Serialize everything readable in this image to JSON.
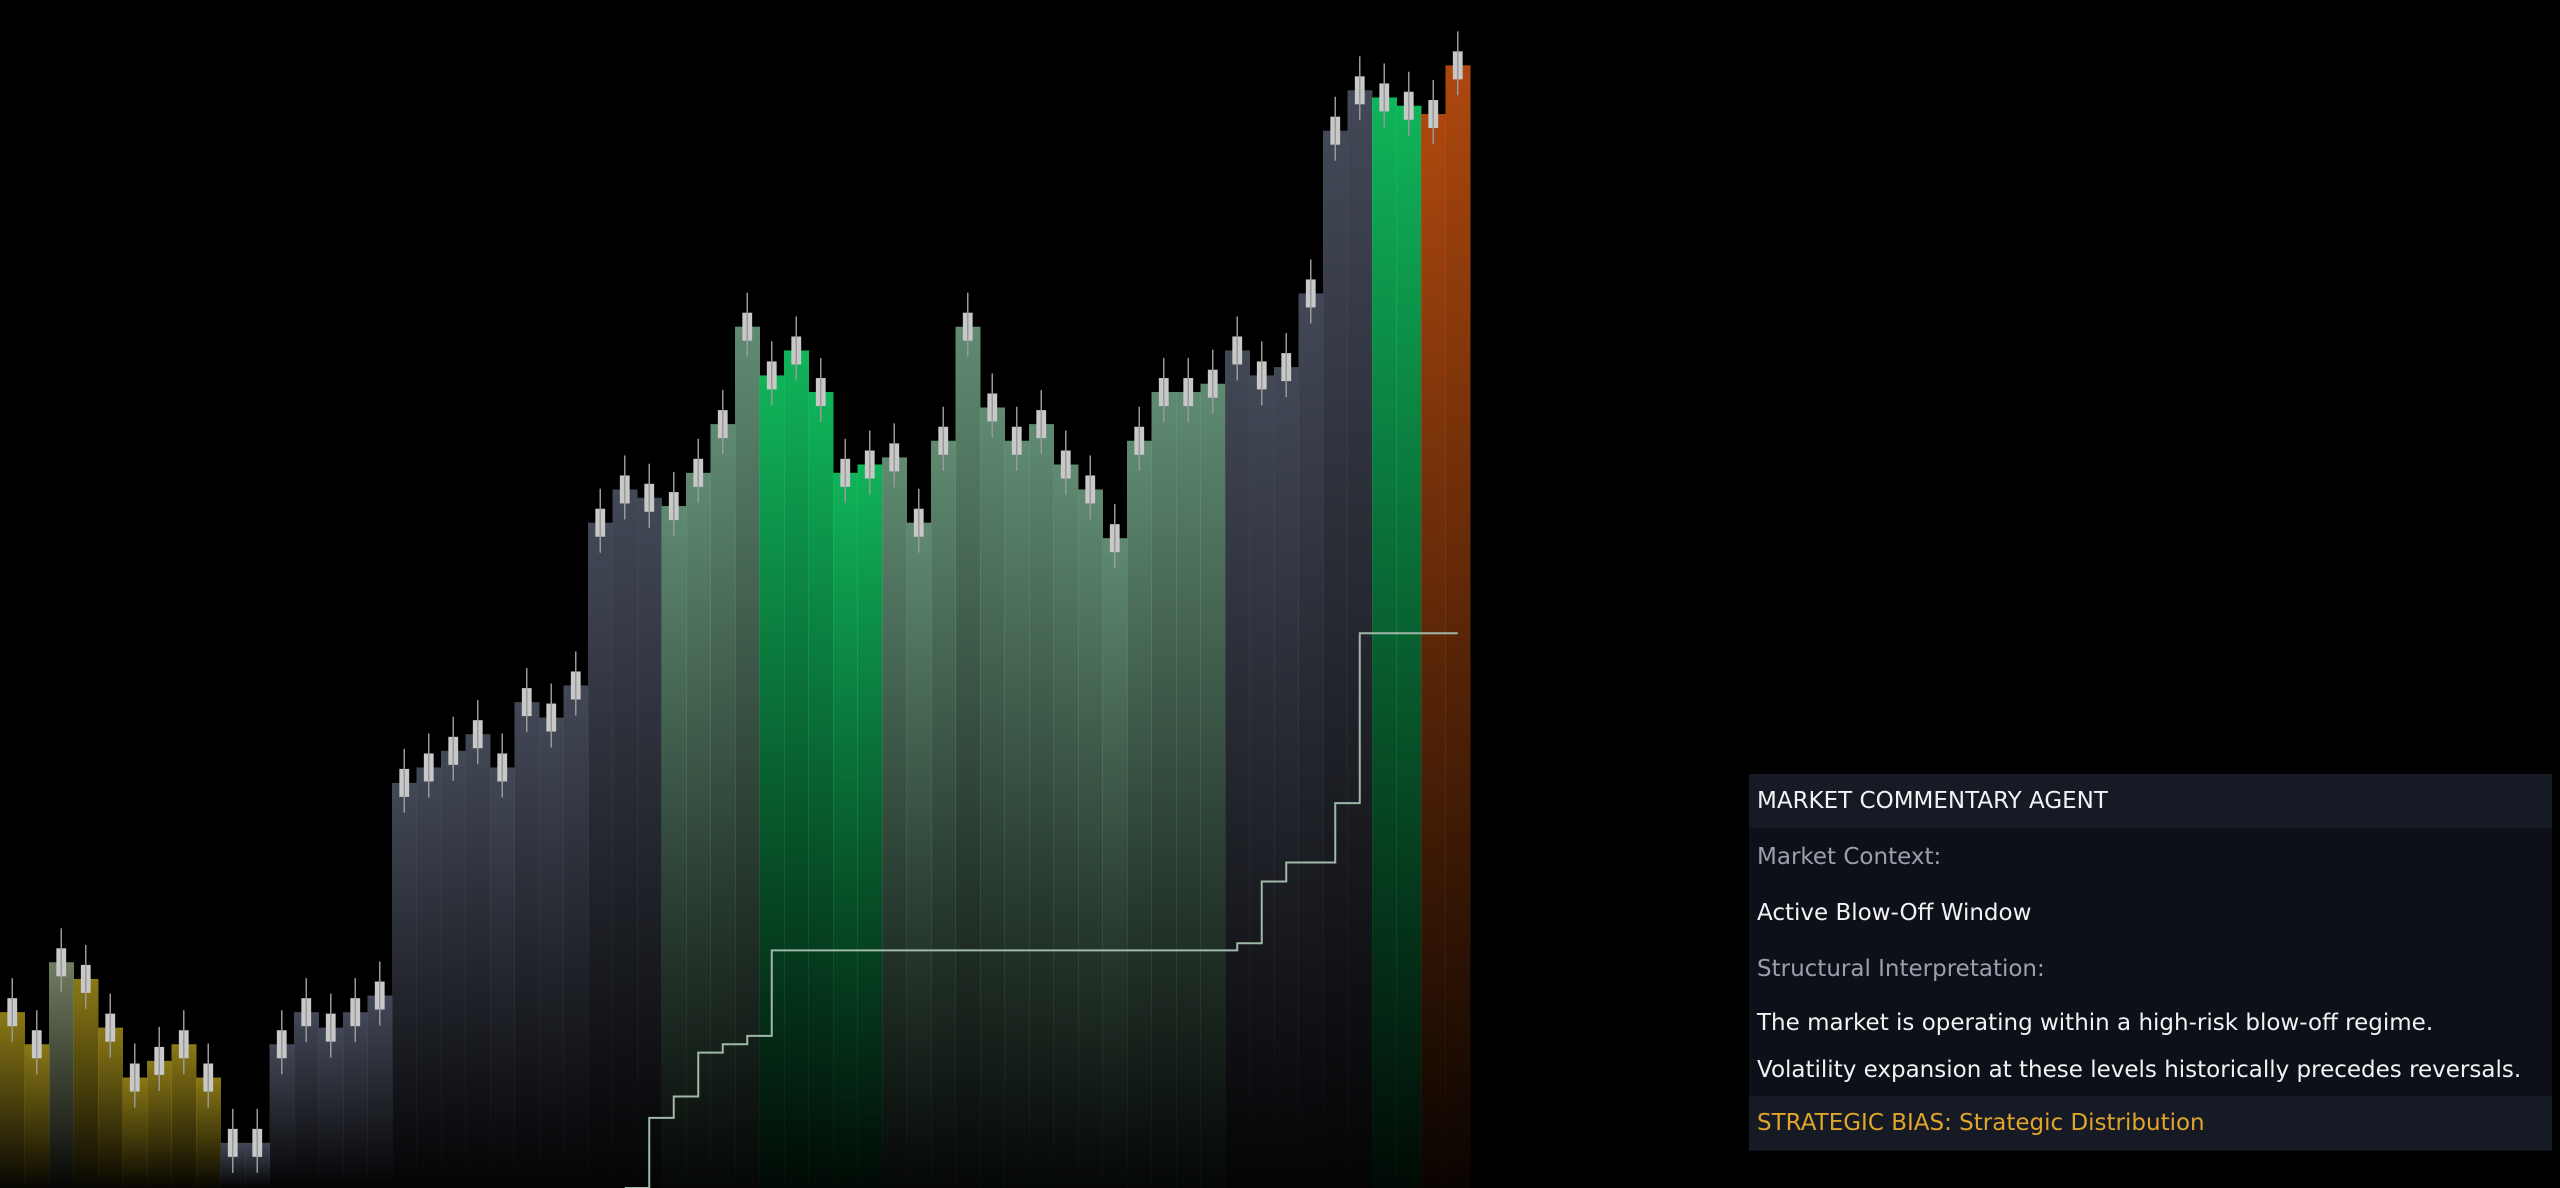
{
  "chart_data": {
    "type": "area",
    "values": [
      14.8,
      12.1,
      19.0,
      17.6,
      13.5,
      9.3,
      10.7,
      12.1,
      9.3,
      3.8,
      3.8,
      12.1,
      14.8,
      13.5,
      14.8,
      16.2,
      34.1,
      35.4,
      36.8,
      38.2,
      35.4,
      40.9,
      39.6,
      42.3,
      56.0,
      58.8,
      58.1,
      57.4,
      60.2,
      64.3,
      72.5,
      68.4,
      70.5,
      67.0,
      60.2,
      60.9,
      61.5,
      56.0,
      62.9,
      72.5,
      65.7,
      62.9,
      64.3,
      60.9,
      58.8,
      54.7,
      62.9,
      67.0,
      67.0,
      67.7,
      70.5,
      68.4,
      69.1,
      75.3,
      89.0,
      92.4,
      91.8,
      91.1,
      90.4,
      94.5
    ],
    "colors": [
      "#9a8618",
      "#9a8618",
      "#7d8a6a",
      "#9a8618",
      "#9a8618",
      "#9a8618",
      "#9a8618",
      "#9a8618",
      "#9a8618",
      "#4a5060",
      "#4a5060",
      "#4a5060",
      "#4a5060",
      "#4a5060",
      "#4a5060",
      "#4a5060",
      "#4a5060",
      "#4a5060",
      "#4a5060",
      "#4a5060",
      "#4a5060",
      "#4a5060",
      "#4a5060",
      "#4a5060",
      "#4a5060",
      "#4a5060",
      "#4a5060",
      "#6a9a7e",
      "#6a9a7e",
      "#6a9a7e",
      "#6a9a7e",
      "#12c864",
      "#12c864",
      "#12c864",
      "#12c864",
      "#12c864",
      "#6a9a7e",
      "#6a9a7e",
      "#6a9a7e",
      "#6a9a7e",
      "#6a9a7e",
      "#6a9a7e",
      "#6a9a7e",
      "#6a9a7e",
      "#6a9a7e",
      "#6a9a7e",
      "#6a9a7e",
      "#6a9a7e",
      "#6a9a7e",
      "#6a9a7e",
      "#4a5060",
      "#4a5060",
      "#4a5060",
      "#4a5060",
      "#4a5060",
      "#4a5060",
      "#12c864",
      "#12c864",
      "#c05010",
      "#c05010"
    ],
    "trail": [
      null,
      null,
      null,
      null,
      null,
      null,
      null,
      null,
      null,
      null,
      null,
      null,
      null,
      null,
      null,
      null,
      null,
      null,
      null,
      null,
      null,
      null,
      null,
      null,
      null,
      0.0,
      5.9,
      7.7,
      11.4,
      12.1,
      12.8,
      20.0,
      20.0,
      20.0,
      20.0,
      20.0,
      20.0,
      20.0,
      20.0,
      20.0,
      20.0,
      20.0,
      20.0,
      20.0,
      20.0,
      20.0,
      20.0,
      20.0,
      20.0,
      20.0,
      20.6,
      25.8,
      27.4,
      27.4,
      32.4,
      46.7,
      46.7,
      46.7,
      46.7,
      46.7
    ],
    "trail_color": "#9fb8a8",
    "ylim": [
      0,
      100
    ]
  },
  "panel": {
    "title": "MARKET COMMENTARY AGENT",
    "context_label": "Market Context:",
    "context": "Active Blow-Off Window",
    "interpretation_label": "Structural Interpretation:",
    "lines": [
      "The market is operating within a high-risk blow-off regime.",
      "Volatility expansion at these levels historically precedes reversals."
    ],
    "bias": "STRATEGIC BIAS: Strategic Distribution"
  }
}
